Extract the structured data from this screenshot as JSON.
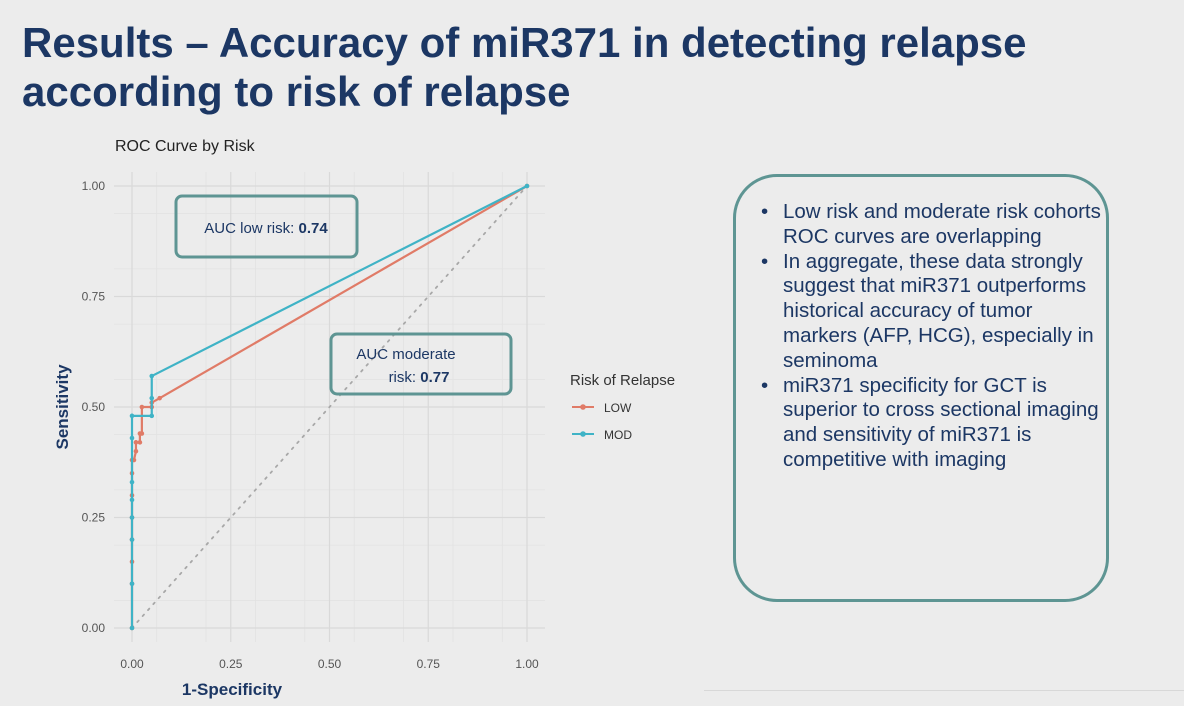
{
  "slide": {
    "title_line1": "Results – Accuracy of miR371 in detecting relapse",
    "title_line2": "according  to risk of relapse",
    "bullets": [
      "Low risk and moderate risk cohorts ROC curves are overlapping",
      "In aggregate, these data strongly suggest that miR371 outperforms historical accuracy of tumor markers (AFP, HCG), especially in seminoma",
      "miR371 specificity for GCT is superior to cross sectional imaging  and sensitivity of miR371 is competitive with imaging"
    ],
    "colors": {
      "title": "#1c3764",
      "box_border": "#5e9593",
      "low": "#e07b67",
      "mod": "#3fb3c6"
    }
  },
  "annotations": {
    "auc_low_label": "AUC low risk:",
    "auc_low_value": "0.74",
    "auc_mod_label_1": "AUC moderate",
    "auc_mod_label_2": "risk:",
    "auc_mod_value": "0.77"
  },
  "chart_data": {
    "type": "line",
    "title": "ROC Curve by Risk",
    "xlabel": "1-Specificity",
    "ylabel": "Sensitivity",
    "xlim": [
      0,
      1
    ],
    "ylim": [
      0,
      1
    ],
    "xticks": [
      "0.00",
      "0.25",
      "0.50",
      "0.75",
      "1.00"
    ],
    "yticks": [
      "0.00",
      "0.25",
      "0.50",
      "0.75",
      "1.00"
    ],
    "grid": true,
    "legend_title": "Risk of Relapse",
    "legend_position": "right",
    "series": [
      {
        "name": "LOW",
        "x": [
          0,
          0,
          0,
          0,
          0,
          0,
          0,
          0,
          0.005,
          0.01,
          0.01,
          0.02,
          0.02,
          0.025,
          0.025,
          0.05,
          0.05,
          0.07,
          1.0
        ],
        "y": [
          0,
          0.1,
          0.15,
          0.2,
          0.25,
          0.3,
          0.35,
          0.38,
          0.38,
          0.4,
          0.42,
          0.42,
          0.44,
          0.44,
          0.5,
          0.5,
          0.51,
          0.52,
          1.0
        ]
      },
      {
        "name": "MOD",
        "x": [
          0,
          0,
          0,
          0,
          0,
          0,
          0,
          0,
          0.05,
          0.05,
          0.05,
          1.0
        ],
        "y": [
          0,
          0.1,
          0.2,
          0.25,
          0.29,
          0.33,
          0.43,
          0.48,
          0.48,
          0.52,
          0.57,
          1.0
        ]
      }
    ],
    "reference_line": {
      "x": [
        0,
        1
      ],
      "y": [
        0,
        1
      ]
    }
  }
}
